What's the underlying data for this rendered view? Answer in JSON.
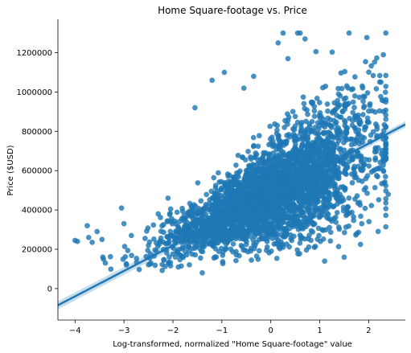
{
  "chart_data": {
    "type": "scatter",
    "title": "Home Square-footage vs. Price",
    "xlabel": "Log-transformed, normalized \"Home Square-footage\" value",
    "ylabel": "Price ($USD)",
    "xlim": [
      -4.35,
      2.75
    ],
    "ylim": [
      -160000,
      1370000
    ],
    "x_ticks": [
      -4,
      -3,
      -2,
      -1,
      0,
      1,
      2
    ],
    "y_ticks": [
      0,
      200000,
      400000,
      600000,
      800000,
      1000000,
      1200000
    ],
    "grid": false,
    "legend": "none",
    "colors": {
      "points": "#1f77b4",
      "line": "#1f77b4",
      "band": "#1f77b4"
    },
    "regression_line": {
      "x": [
        -4.35,
        2.75
      ],
      "y": [
        -85000,
        835000
      ]
    },
    "scatter_cloud": {
      "point_count": 3400,
      "y_floor": 80000,
      "y_cap": 1300000,
      "center_slope": 115000,
      "center_intercept": 480000,
      "x_range": [
        -4.2,
        2.35
      ]
    },
    "series": [
      {
        "points": [
          [
            -4.0,
            245000
          ],
          [
            -3.95,
            240000
          ],
          [
            -3.75,
            320000
          ],
          [
            -3.72,
            260000
          ],
          [
            -3.65,
            235000
          ],
          [
            -3.55,
            290000
          ],
          [
            -3.45,
            250000
          ],
          [
            -3.42,
            150000
          ],
          [
            -3.38,
            130000
          ],
          [
            -3.05,
            410000
          ],
          [
            -3.0,
            330000
          ],
          [
            -2.85,
            270000
          ],
          [
            -2.95,
            120000
          ],
          [
            -1.55,
            920000
          ],
          [
            -1.2,
            1060000
          ],
          [
            -0.95,
            1100000
          ],
          [
            -0.55,
            1020000
          ],
          [
            0.15,
            1250000
          ],
          [
            0.25,
            1300000
          ],
          [
            0.6,
            1300000
          ],
          [
            0.7,
            1270000
          ],
          [
            -0.35,
            1080000
          ],
          [
            0.35,
            1170000
          ],
          [
            0.55,
            1300000
          ],
          [
            1.6,
            1300000
          ],
          [
            2.35,
            1300000
          ],
          [
            2.4,
            480000
          ],
          [
            2.3,
            760000
          ],
          [
            2.35,
            950000
          ],
          [
            2.25,
            1050000
          ],
          [
            1.5,
            160000
          ],
          [
            1.1,
            140000
          ],
          [
            -2.45,
            130000
          ],
          [
            -1.4,
            80000
          ],
          [
            -2.1,
            460000
          ],
          [
            -2.3,
            380000
          ]
        ]
      }
    ]
  }
}
